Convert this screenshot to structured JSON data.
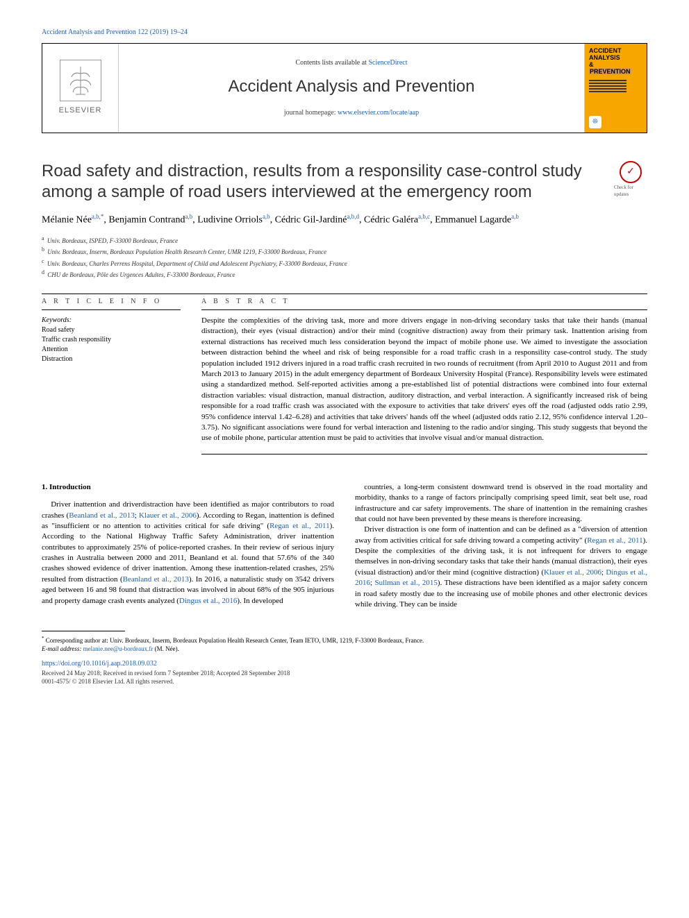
{
  "top_journal_link": "Accident Analysis and Prevention 122 (2019) 19–24",
  "header": {
    "contents_prefix": "Contents lists available at ",
    "contents_link": "ScienceDirect",
    "journal_name": "Accident Analysis and Prevention",
    "homepage_prefix": "journal homepage: ",
    "homepage_link": "www.elsevier.com/locate/aap",
    "elsevier_word": "ELSEVIER",
    "cover_title_lines": [
      "ACCIDENT",
      "ANALYSIS",
      "&",
      "PREVENTION"
    ]
  },
  "update_badge": "Check for updates",
  "title": "Road safety and distraction, results from a responsility case-control study among a sample of road users interviewed at the emergency room",
  "authors_html": "Mélanie Née<sup>a,b,*</sup>, Benjamin Contrand<sup>a,b</sup>, Ludivine Orriols<sup>a,b</sup>, Cédric Gil-Jardiné<sup>a,b,d</sup>, Cédric Galéra<sup>a,b,c</sup>, Emmanuel Lagarde<sup>a,b</sup>",
  "affiliations": [
    {
      "sup": "a",
      "text": "Univ. Bordeaux, ISPED, F-33000 Bordeaux, France"
    },
    {
      "sup": "b",
      "text": "Univ. Bordeaux, Inserm, Bordeaux Population Health Research Center, UMR 1219, F-33000 Bordeaux, France"
    },
    {
      "sup": "c",
      "text": "Univ. Bordeaux, Charles Perrens Hospital, Department of Child and Adolescent Psychiatry, F-33000 Bordeaux, France"
    },
    {
      "sup": "d",
      "text": "CHU de Bordeaux, Pôle des Urgences Adultes, F-33000 Bordeaux, France"
    }
  ],
  "article_info_label": "A R T I C L E  I N F O",
  "abstract_label": "A B S T R A C T",
  "keywords_label": "Keywords:",
  "keywords": [
    "Road safety",
    "Traffic crash responsility",
    "Attention",
    "Distraction"
  ],
  "abstract": "Despite the complexities of the driving task, more and more drivers engage in non-driving secondary tasks that take their hands (manual distraction), their eyes (visual distraction) and/or their mind (cognitive distraction) away from their primary task. Inattention arising from external distractions has received much less consideration beyond the impact of mobile phone use. We aimed to investigate the association between distraction behind the wheel and risk of being responsible for a road traffic crash in a responsility case-control study. The study population included 1912 drivers injured in a road traffic crash recruited in two rounds of recruitment (from April 2010 to August 2011 and from March 2013 to January 2015) in the adult emergency department of Bordeaux University Hospital (France). Responsibility levels were estimated using a standardized method. Self-reported activities among a pre-established list of potential distractions were combined into four external distraction variables: visual distraction, manual distraction, auditory distraction, and verbal interaction. A significantly increased risk of being responsible for a road traffic crash was associated with the exposure to activities that take drivers' eyes off the road (adjusted odds ratio 2.99, 95% confidence interval 1.42–6.28) and activities that take drivers' hands off the wheel (adjusted odds ratio 2.12, 95% confidence interval 1.20–3.75). No significant associations were found for verbal interaction and listening to the radio and/or singing. This study suggests that beyond the use of mobile phone, particular attention must be paid to activities that involve visual and/or manual distraction.",
  "intro_heading": "1. Introduction",
  "intro_paragraphs": [
    "Driver inattention and driverdistraction have been identified as major contributors to road crashes (Beanland et al., 2013; Klauer et al., 2006). According to Regan, inattention is defined as \"insufficient or no attention to activities critical for safe driving\" (Regan et al., 2011). According to the National Highway Traffic Safety Administration, driver inattention contributes to approximately 25% of police-reported crashes. In their review of serious injury crashes in Australia between 2000 and 2011, Beanland et al. found that 57.6% of the 340 crashes showed evidence of driver inattention. Among these inattention-related crashes, 25% resulted from distraction (Beanland et al., 2013). In 2016, a naturalistic study on 3542 drivers aged between 16 and 98 found that distraction was involved in about 68% of the 905 injurious and property damage crash events analyzed (Dingus et al., 2016). In developed",
    "countries, a long-term consistent downward trend is observed in the road mortality and morbidity, thanks to a range of factors principally comprising speed limit, seat belt use, road infrastructure and car safety improvements. The share of inattention in the remaining crashes that could not have been prevented by these means is therefore increasing.",
    "Driver distraction is one form of inattention and can be defined as a \"diversion of attention away from activities critical for safe driving toward a competing activity\" (Regan et al., 2011). Despite the complexities of the driving task, it is not infrequent for drivers to engage themselves in non-driving secondary tasks that take their hands (manual distraction), their eyes (visual distraction) and/or their mind (cognitive distraction) (Klauer et al., 2006; Dingus et al., 2016; Sullman et al., 2015). These distractions have been identified as a major safety concern in road safety mostly due to the increasing use of mobile phones and other electronic devices while driving. They can be inside"
  ],
  "footnote_corresponding": "Corresponding author at: Univ. Bordeaux, Inserm, Bordeaux Population Health Research Center, Team IETO, UMR, 1219, F-33000 Bordeaux, France.",
  "footnote_email_label": "E-mail address: ",
  "footnote_email": "melanie.nee@u-bordeaux.fr",
  "footnote_email_suffix": " (M. Née).",
  "doi": "https://doi.org/10.1016/j.aap.2018.09.032",
  "received": "Received 24 May 2018; Received in revised form 7 September 2018; Accepted 28 September 2018",
  "copyright": "0001-4575/ © 2018 Elsevier Ltd. All rights reserved.",
  "colors": {
    "link": "#1a5fb4",
    "cover_bg": "#f7a600",
    "text": "#000000",
    "muted": "#333333"
  }
}
